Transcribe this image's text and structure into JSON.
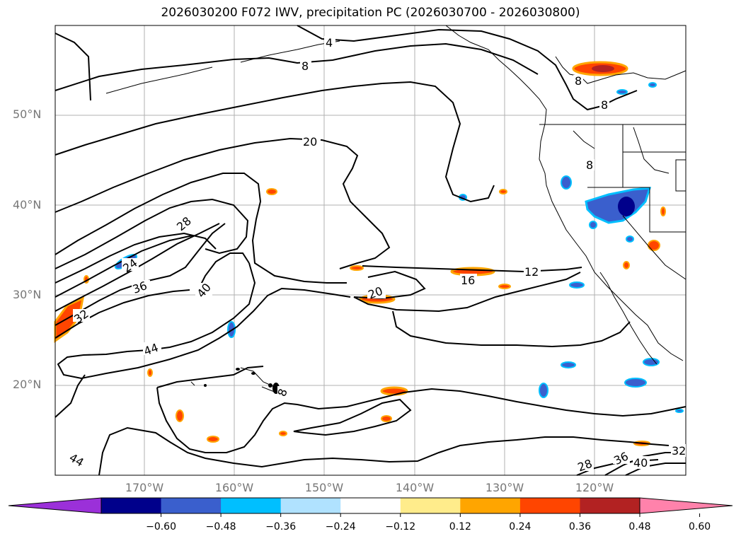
{
  "title": "2026030200 F072 IWV, precipitation PC (2026030700 - 2026030800)",
  "lat_labels": [
    "50°N",
    "40°N",
    "30°N",
    "20°N"
  ],
  "lon_labels": [
    "170°W",
    "160°W",
    "150°W",
    "140°W",
    "130°W",
    "120°W"
  ],
  "contour_labels": [
    "4",
    "8",
    "8",
    "8",
    "8",
    "12",
    "16",
    "20",
    "20",
    "24",
    "28",
    "28",
    "32",
    "32",
    "36",
    "36",
    "40",
    "40",
    "44",
    "44",
    "8"
  ],
  "colorbar": {
    "ticks": [
      "−0.60",
      "−0.48",
      "−0.36",
      "−0.24",
      "−0.12",
      "0.12",
      "0.24",
      "0.36",
      "0.48",
      "0.60"
    ],
    "colors": [
      "#9b30d9",
      "#00008b",
      "#3a5fcd",
      "#00bfff",
      "#b0e2ff",
      "#ffffff",
      "#ffec8b",
      "#ffa500",
      "#ff4500",
      "#b22222",
      "#ff82ab"
    ]
  }
}
